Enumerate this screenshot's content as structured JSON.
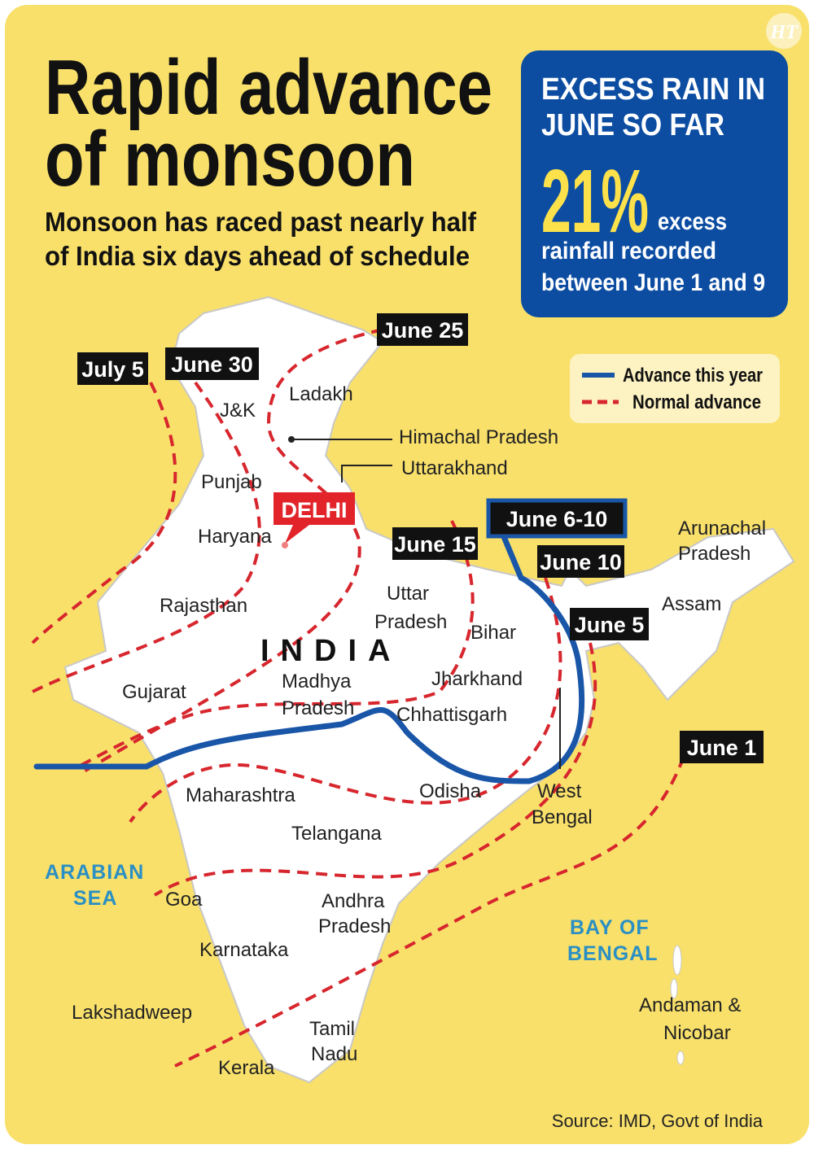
{
  "header": {
    "title": [
      "Rapid advance",
      "of monsoon"
    ],
    "subtitle": [
      "Monsoon has raced past nearly half",
      "of India six days ahead of schedule"
    ],
    "logo": "HT"
  },
  "stat_box": {
    "heading": [
      "EXCESS RAIN IN",
      "JUNE SO FAR"
    ],
    "figure": "21%",
    "text": [
      "excess",
      "rainfall recorded",
      "between June 1 and 9"
    ]
  },
  "legend": {
    "items": [
      "Advance this year",
      "Normal advance"
    ]
  },
  "map": {
    "country": "INDIA",
    "capital": "DELHI",
    "dates": [
      "July 5",
      "June 30",
      "June 25",
      "June 15",
      "June 10",
      "June 6-10",
      "June 5",
      "June 1"
    ],
    "places": [
      [
        "Ladakh"
      ],
      [
        "J&K"
      ],
      [
        "Himachal Pradesh"
      ],
      [
        "Uttarakhand"
      ],
      [
        "Punjab"
      ],
      [
        "Haryana"
      ],
      [
        "Rajasthan"
      ],
      [
        "Gujarat"
      ],
      [
        "Madhya",
        "Pradesh"
      ],
      [
        "Uttar",
        "Pradesh"
      ],
      [
        "Bihar"
      ],
      [
        "Jharkhand"
      ],
      [
        "Chhattisgarh"
      ],
      [
        "Arunachal",
        "Pradesh"
      ],
      [
        "Assam"
      ],
      [
        "Maharashtra"
      ],
      [
        "Odisha"
      ],
      [
        "West",
        "Bengal"
      ],
      [
        "Telangana"
      ],
      [
        "Goa"
      ],
      [
        "Andhra",
        "Pradesh"
      ],
      [
        "Karnataka"
      ],
      [
        "Lakshadweep"
      ],
      [
        "Tamil",
        "Nadu"
      ],
      [
        "Kerala"
      ],
      [
        "Andaman &",
        "Nicobar"
      ]
    ],
    "seas": [
      [
        "ARABIAN",
        "SEA"
      ],
      [
        "BAY OF",
        "BENGAL"
      ]
    ]
  },
  "source": "Source: IMD, Govt of India"
}
